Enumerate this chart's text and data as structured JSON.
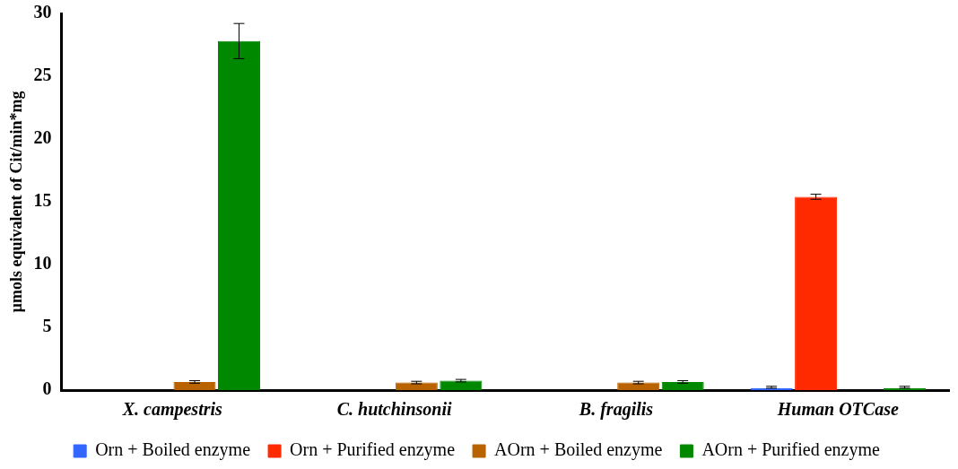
{
  "chart_data": {
    "type": "bar",
    "ylabel": "µmols equivalent of Cit/min*mg",
    "categories": [
      "X. campestris",
      "C. hutchinsonii",
      "B. fragilis",
      "Human OTCase"
    ],
    "series": [
      {
        "name": "Orn + Boiled enzyme",
        "color": "#3366ff",
        "values": [
          null,
          null,
          null,
          0.15
        ],
        "errors": [
          null,
          null,
          null,
          [
            0.15,
            0.3
          ]
        ]
      },
      {
        "name": "Orn + Purified enzyme",
        "color": "#ff2a00",
        "values": [
          null,
          null,
          null,
          15.4
        ],
        "errors": [
          null,
          null,
          null,
          0.2
        ]
      },
      {
        "name": "AOrn + Boiled enzyme",
        "color": "#b86200",
        "values": [
          0.65,
          0.6,
          0.6,
          null
        ],
        "errors": [
          0.1,
          0.1,
          0.1,
          null
        ]
      },
      {
        "name": "AOrn + Purified enzyme",
        "color": "#008800",
        "values": [
          27.8,
          0.75,
          0.65,
          0.15
        ],
        "errors": [
          1.4,
          0.1,
          0.1,
          [
            0.15,
            0.3
          ]
        ]
      }
    ],
    "ylim": [
      0,
      30
    ],
    "yticks": [
      0,
      5,
      10,
      15,
      20,
      25,
      30
    ],
    "grid": false,
    "legend": "bottom"
  }
}
